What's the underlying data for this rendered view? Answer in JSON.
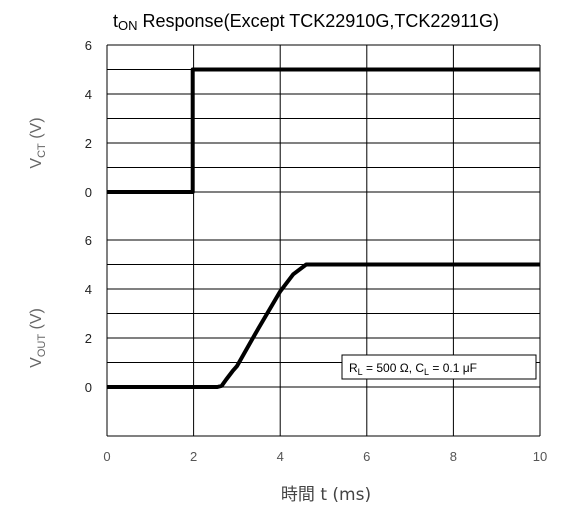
{
  "chart_data": {
    "type": "line",
    "title": {
      "main": "t",
      "sub": "ON",
      "rest": " Response(Except TCK22910G,TCK22911G)"
    },
    "xlabel": "時間 t (ms)",
    "xlim": [
      0,
      10
    ],
    "x_ticks": [
      "0",
      "2",
      "4",
      "6",
      "8",
      "10"
    ],
    "grid": true,
    "annotation": {
      "r_main": "R",
      "r_sub": "L",
      "r_rest": " = 500 Ω, C",
      "c_sub": "L",
      "c_rest": " = 0.1 μF"
    },
    "panels": [
      {
        "name": "vct-panel",
        "ylabel": {
          "main": "V",
          "sub": "CT",
          "rest": " (V)"
        },
        "ylim": [
          0,
          6
        ],
        "y_ticks": [
          "0",
          "2",
          "4",
          "6"
        ],
        "points": [
          [
            0,
            0
          ],
          [
            1.98,
            0
          ],
          [
            1.98,
            5
          ],
          [
            2.02,
            5
          ],
          [
            10,
            5
          ]
        ]
      },
      {
        "name": "vout-panel",
        "ylabel": {
          "main": "V",
          "sub": "OUT",
          "rest": " (V)"
        },
        "ylim": [
          0,
          6
        ],
        "y_ticks": [
          "0",
          "2",
          "4",
          "6"
        ],
        "points": [
          [
            0,
            0
          ],
          [
            2.55,
            0
          ],
          [
            2.65,
            0.05
          ],
          [
            2.75,
            0.3
          ],
          [
            2.9,
            0.65
          ],
          [
            3.0,
            0.85
          ],
          [
            3.5,
            2.4
          ],
          [
            4.0,
            3.9
          ],
          [
            4.3,
            4.6
          ],
          [
            4.6,
            5
          ],
          [
            10,
            5
          ]
        ]
      }
    ]
  }
}
